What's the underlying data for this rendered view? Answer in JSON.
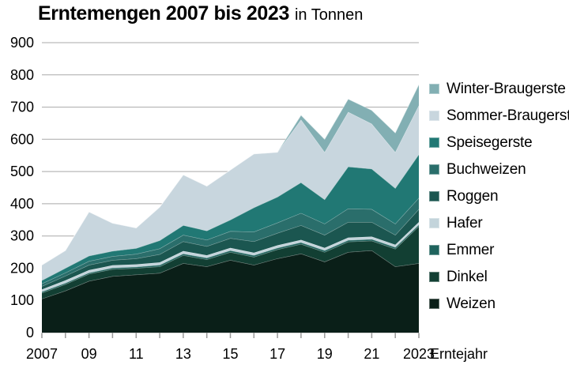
{
  "title": "Erntemengen 2007 bis 2023",
  "subtitle": "in Tonnen",
  "x_axis": {
    "unit_label": "Erntejahr",
    "tick_labels": [
      "2007",
      "09",
      "11",
      "13",
      "15",
      "17",
      "19",
      "21",
      "2023"
    ],
    "labeled_indices": [
      0,
      2,
      4,
      6,
      8,
      10,
      12,
      14,
      16
    ]
  },
  "y_axis": {
    "tick_labels": [
      "0",
      "100",
      "200",
      "300",
      "400",
      "500",
      "600",
      "700",
      "800",
      "900"
    ]
  },
  "legend": {
    "items": [
      "Winter-Braugerste",
      "Sommer-Braugerste",
      "Speisegerste",
      "Buchweizen",
      "Roggen",
      "Hafer",
      "Emmer",
      "Dinkel",
      "Weizen"
    ]
  },
  "colors": {
    "grid": "#a9a9a9",
    "tick": "#999999",
    "text": "#000000",
    "background": "#ffffff",
    "layer_edge": "rgba(255,255,255,0.45)"
  },
  "chart_data": {
    "type": "area",
    "stacked": true,
    "title": "Erntemengen 2007 bis 2023",
    "units": "Tonnen",
    "xlabel": "Erntejahr",
    "ylabel": "",
    "ylim": [
      0,
      900
    ],
    "grid": true,
    "legend_position": "right",
    "x": [
      2007,
      2008,
      2009,
      2010,
      2011,
      2012,
      2013,
      2014,
      2015,
      2016,
      2017,
      2018,
      2019,
      2020,
      2021,
      2022,
      2023
    ],
    "series_bottom_to_top": [
      {
        "name": "Weizen",
        "color": "#0a1f18",
        "values": [
          105,
          130,
          160,
          175,
          180,
          185,
          215,
          205,
          225,
          210,
          230,
          245,
          220,
          250,
          255,
          205,
          215
        ]
      },
      {
        "name": "Dinkel",
        "color": "#123f33",
        "values": [
          18,
          20,
          22,
          22,
          20,
          20,
          25,
          22,
          25,
          25,
          28,
          30,
          30,
          32,
          30,
          55,
          115
        ]
      },
      {
        "name": "Emmer",
        "color": "#1f635d",
        "values": [
          4,
          4,
          4,
          4,
          4,
          5,
          5,
          5,
          5,
          5,
          5,
          5,
          5,
          5,
          5,
          5,
          5
        ]
      },
      {
        "name": "Hafer",
        "color": "#c3d4db",
        "values": [
          7,
          8,
          8,
          8,
          8,
          8,
          8,
          8,
          8,
          8,
          8,
          8,
          8,
          8,
          8,
          8,
          8
        ]
      },
      {
        "name": "Roggen",
        "color": "#1b5650",
        "values": [
          10,
          14,
          16,
          16,
          18,
          25,
          30,
          28,
          30,
          35,
          38,
          45,
          40,
          48,
          45,
          30,
          40
        ]
      },
      {
        "name": "Buchweizen",
        "color": "#2a6e6b",
        "values": [
          8,
          10,
          12,
          12,
          14,
          18,
          20,
          20,
          22,
          30,
          32,
          38,
          35,
          42,
          40,
          35,
          35
        ]
      },
      {
        "name": "Speisegerste",
        "color": "#217874",
        "values": [
          10,
          14,
          16,
          16,
          18,
          25,
          30,
          28,
          35,
          75,
          80,
          95,
          75,
          130,
          125,
          110,
          135
        ]
      },
      {
        "name": "Sommer-Braugerste",
        "color": "#c8d6de",
        "values": [
          48,
          55,
          137,
          87,
          63,
          104,
          157,
          139,
          155,
          167,
          139,
          195,
          147,
          170,
          140,
          112,
          152
        ]
      },
      {
        "name": "Winter-Braugerste",
        "color": "#82afb3",
        "values": [
          0,
          0,
          0,
          0,
          0,
          0,
          0,
          0,
          0,
          0,
          0,
          14,
          40,
          40,
          42,
          60,
          65
        ]
      }
    ],
    "totals": [
      210,
      255,
      375,
      340,
      325,
      390,
      490,
      455,
      505,
      555,
      560,
      675,
      600,
      725,
      690,
      620,
      770
    ]
  }
}
